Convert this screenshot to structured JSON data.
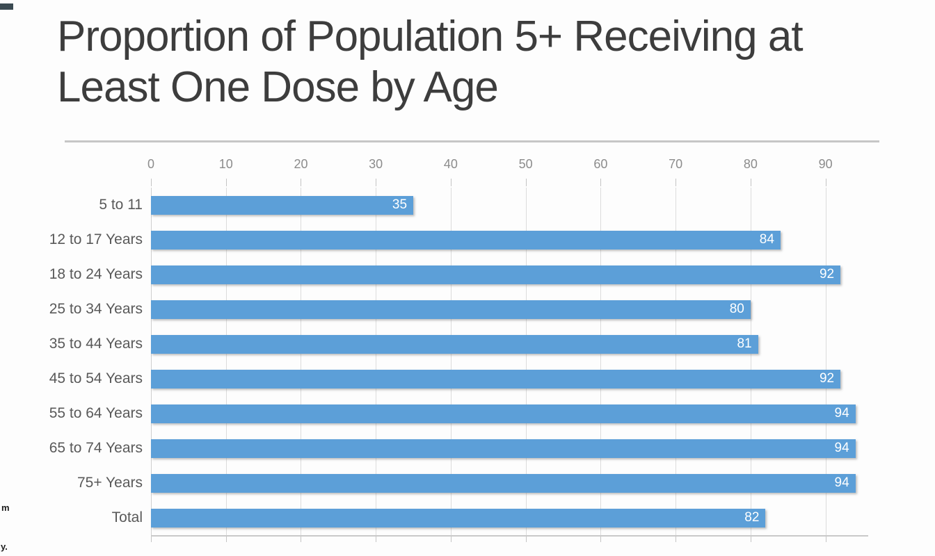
{
  "page": {
    "background": "#fdfdfd",
    "corner_artifact_color": "#3b4a52",
    "edge_fragments": [
      "m",
      "y."
    ]
  },
  "chart_data": {
    "type": "bar",
    "orientation": "horizontal",
    "title": "Proportion of Population 5+ Receiving at Least One Dose by Age",
    "title_lines": [
      "Proportion of Population 5+ Receiving at",
      "Least One Dose by Age"
    ],
    "categories": [
      "5 to 11",
      "12 to 17 Years",
      "18 to 24 Years",
      "25 to 34 Years",
      "35 to 44 Years",
      "45 to 54 Years",
      "55 to 64 Years",
      "65 to 74 Years",
      "75+ Years",
      "Total"
    ],
    "values": [
      35,
      84,
      92,
      80,
      81,
      92,
      94,
      94,
      94,
      82
    ],
    "value_labels": [
      "35",
      "84",
      "92",
      "80",
      "81",
      "92",
      "94",
      "94",
      "94",
      "82"
    ],
    "x_ticks": [
      0,
      10,
      20,
      30,
      40,
      50,
      60,
      70,
      80,
      90
    ],
    "xlim": [
      0,
      95.7
    ],
    "xlabel": "",
    "ylabel": "",
    "grid": true,
    "legend_position": "none",
    "bar_color": "#5c9fd8",
    "value_label_color": "#ffffff",
    "tick_label_color": "#8c8c8c",
    "category_label_color": "#595959",
    "title_color": "#3d3d3d"
  }
}
